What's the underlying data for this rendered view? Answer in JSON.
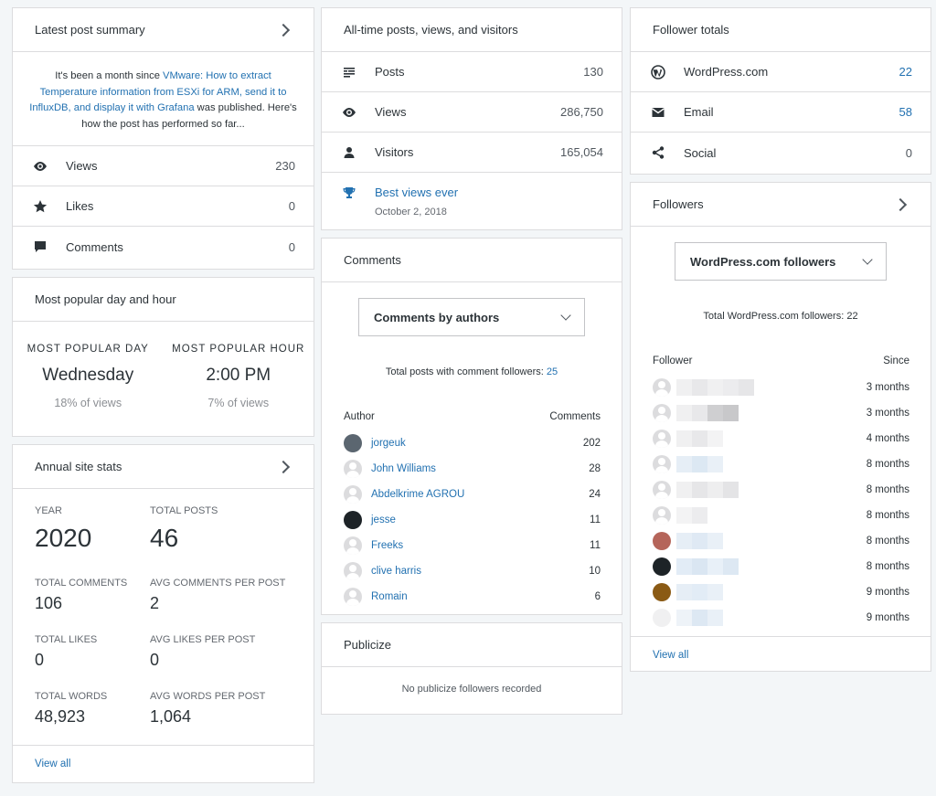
{
  "latest_post": {
    "title": "Latest post summary",
    "text_pre": "It's been a month since ",
    "post_link": "VMware: How to extract Temperature information from ESXi for ARM, send it to InfluxDB, and display it with Grafana",
    "text_post": " was published. Here's how the post has performed so far...",
    "rows": [
      {
        "label": "Views",
        "value": "230",
        "icon": "eye-icon"
      },
      {
        "label": "Likes",
        "value": "0",
        "icon": "star-icon"
      },
      {
        "label": "Comments",
        "value": "0",
        "icon": "comment-icon"
      }
    ]
  },
  "popular": {
    "title": "Most popular day and hour",
    "day_label": "MOST POPULAR DAY",
    "day_value": "Wednesday",
    "day_pct": "18% of views",
    "hour_label": "MOST POPULAR HOUR",
    "hour_value": "2:00 PM",
    "hour_pct": "7% of views"
  },
  "annual": {
    "title": "Annual site stats",
    "year_label": "YEAR",
    "year_value": "2020",
    "posts_label": "TOTAL POSTS",
    "posts_value": "46",
    "comments_label": "TOTAL COMMENTS",
    "comments_value": "106",
    "avg_comments_label": "AVG COMMENTS PER POST",
    "avg_comments_value": "2",
    "likes_label": "TOTAL LIKES",
    "likes_value": "0",
    "avg_likes_label": "AVG LIKES PER POST",
    "avg_likes_value": "0",
    "words_label": "TOTAL WORDS",
    "words_value": "48,923",
    "avg_words_label": "AVG WORDS PER POST",
    "avg_words_value": "1,064",
    "view_all": "View all"
  },
  "alltime": {
    "title": "All-time posts, views, and visitors",
    "rows": [
      {
        "label": "Posts",
        "value": "130",
        "icon": "posts-icon"
      },
      {
        "label": "Views",
        "value": "286,750",
        "icon": "eye-icon"
      },
      {
        "label": "Visitors",
        "value": "165,054",
        "icon": "person-icon"
      }
    ],
    "best_label": "Best views ever",
    "best_date": "October 2, 2018"
  },
  "comments": {
    "title": "Comments",
    "dropdown": "Comments by authors",
    "total_text": "Total posts with comment followers: ",
    "total_value": "25",
    "col_author": "Author",
    "col_comments": "Comments",
    "authors": [
      {
        "name": "jorgeuk",
        "count": "202",
        "avatar": "#5b6670"
      },
      {
        "name": "John Williams",
        "count": "28",
        "avatar": "default"
      },
      {
        "name": "Abdelkrime AGROU",
        "count": "24",
        "avatar": "default"
      },
      {
        "name": "jesse",
        "count": "11",
        "avatar": "#1d2327"
      },
      {
        "name": "Freeks",
        "count": "11",
        "avatar": "default"
      },
      {
        "name": "clive harris",
        "count": "10",
        "avatar": "default"
      },
      {
        "name": "Romain",
        "count": "6",
        "avatar": "default"
      }
    ]
  },
  "publicize": {
    "title": "Publicize",
    "empty": "No publicize followers recorded"
  },
  "follower_totals": {
    "title": "Follower totals",
    "rows": [
      {
        "label": "WordPress.com",
        "value": "22",
        "icon": "wordpress-icon",
        "link": true
      },
      {
        "label": "Email",
        "value": "58",
        "icon": "mail-icon",
        "link": true
      },
      {
        "label": "Social",
        "value": "0",
        "icon": "share-icon",
        "link": false
      }
    ]
  },
  "followers": {
    "title": "Followers",
    "dropdown": "WordPress.com followers",
    "total_text": "Total WordPress.com followers: 22",
    "col_follower": "Follower",
    "col_since": "Since",
    "rows": [
      {
        "since": "3 months",
        "avatar": "default"
      },
      {
        "since": "3 months",
        "avatar": "default"
      },
      {
        "since": "4 months",
        "avatar": "default"
      },
      {
        "since": "8 months",
        "avatar": "default"
      },
      {
        "since": "8 months",
        "avatar": "default"
      },
      {
        "since": "8 months",
        "avatar": "default"
      },
      {
        "since": "8 months",
        "avatar": "#b5655a"
      },
      {
        "since": "8 months",
        "avatar": "#1d2327"
      },
      {
        "since": "9 months",
        "avatar": "#8a5a14"
      },
      {
        "since": "9 months",
        "avatar": "#f0f0f1"
      }
    ],
    "view_all": "View all"
  }
}
